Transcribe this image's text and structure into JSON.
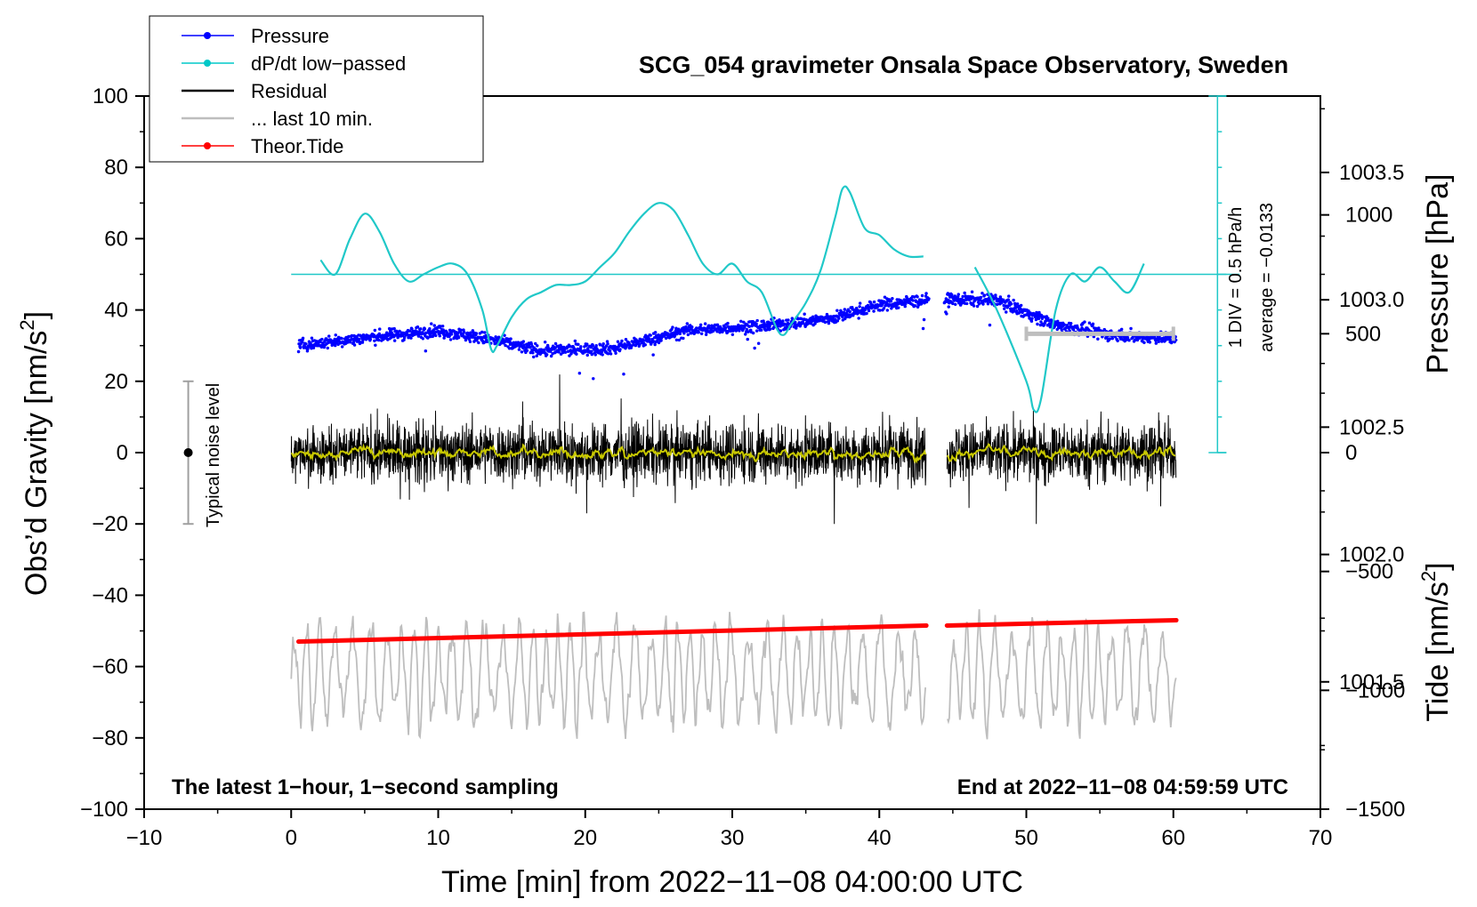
{
  "chart_data": {
    "type": "line",
    "title": "SCG_054 gravimeter Onsala Space Observatory, Sweden",
    "xlabel": "Time [min] from 2022−11−08 04:00:00 UTC",
    "ylabel": "Obs’d Gravity [nm/s",
    "ylabel_sup": "2",
    "ylabel_close": "]",
    "right_label_top": "Pressure [hPa]",
    "right_label_bottom": "Tide [nm/s",
    "right_label_bottom_sup": "2",
    "right_label_bottom_close": "]",
    "note_left": "The latest 1−hour, 1−second sampling",
    "note_right": "End at 2022−11−08 04:59:59 UTC",
    "noise_label": "Typical noise level",
    "dpdt_scale_label": "1 DIV = 0.5 hPa/h",
    "dpdt_average_label": "average = −0.0133",
    "xlim": [
      -10,
      70
    ],
    "ylim": [
      -100,
      100
    ],
    "pressure_ylim": [
      1001.0,
      1003.8
    ],
    "tide_ylim": [
      -1500,
      1500
    ],
    "x_ticks": [
      "−10",
      "0",
      "10",
      "20",
      "30",
      "40",
      "50",
      "60",
      "70"
    ],
    "x_tick_values": [
      -10,
      0,
      10,
      20,
      30,
      40,
      50,
      60,
      70
    ],
    "y_ticks": [
      "100",
      "80",
      "60",
      "40",
      "20",
      "0",
      "−20",
      "−40",
      "−60",
      "−80",
      "−100"
    ],
    "y_tick_values": [
      100,
      80,
      60,
      40,
      20,
      0,
      -20,
      -40,
      -60,
      -80,
      -100
    ],
    "pressure_ticks": [
      "1003.5",
      "1003.0",
      "1002.5",
      "1002.0",
      "1001.5"
    ],
    "pressure_tick_values": [
      1003.5,
      1003.0,
      1002.5,
      1002.0,
      1001.5
    ],
    "tide_ticks": [
      "1000",
      "500",
      "0",
      "−500",
      "−1000",
      "−1500"
    ],
    "tide_tick_values": [
      1000,
      500,
      0,
      -500,
      -1000,
      -1500
    ],
    "legend": [
      {
        "label": "Pressure",
        "color": "#0000ff",
        "marker": true
      },
      {
        "label": "dP/dt low−passed",
        "color": "#00c8c8",
        "marker": true
      },
      {
        "label": "Residual",
        "color": "#000000",
        "marker": false
      },
      {
        "label": "... last 10 min.",
        "color": "#bebebe",
        "marker": false
      },
      {
        "label": "Theor.Tide",
        "color": "#ff0000",
        "marker": true
      }
    ],
    "colors": {
      "pressure": "#0000ff",
      "dpdt": "#20c8c8",
      "residual": "#000000",
      "residual_smooth": "#c8c800",
      "last10": "#bebebe",
      "tide": "#ff0000",
      "noise_bar": "#a0a0a0"
    },
    "pressure": {
      "gap": [
        43.4,
        44.4
      ],
      "x": [
        0.5,
        5,
        10,
        13,
        17,
        22,
        27,
        33,
        37,
        40,
        43.3,
        44.5,
        48,
        52,
        56,
        60
      ],
      "y": [
        1002.82,
        1002.85,
        1002.88,
        1002.85,
        1002.8,
        1002.81,
        1002.88,
        1002.9,
        1002.93,
        1002.98,
        1003.0,
        1003.0,
        1003.0,
        1002.9,
        1002.86,
        1002.85
      ]
    },
    "dpdt": {
      "baseline": 50,
      "gap": [
        43.4,
        46.4
      ],
      "x": [
        2,
        3,
        4,
        5,
        6,
        7,
        8,
        9,
        10,
        11,
        12,
        13,
        13.6,
        14,
        15,
        16,
        17,
        18,
        19,
        20,
        21,
        22,
        23,
        24,
        25,
        26,
        27,
        28,
        29,
        30,
        31,
        32,
        33,
        33.5,
        34,
        35,
        36,
        37,
        37.5,
        38,
        39,
        40,
        41,
        42,
        43,
        46.5,
        48,
        50,
        50.5,
        51,
        52,
        53,
        54,
        55,
        56,
        57,
        58
      ],
      "y": [
        54,
        50,
        60,
        67,
        62,
        53,
        48,
        50,
        52,
        53,
        50,
        40,
        29,
        30,
        38,
        43,
        45,
        47,
        47,
        48,
        52,
        56,
        62,
        67,
        70,
        68,
        61,
        53,
        50,
        53,
        48,
        45,
        35,
        33,
        36,
        42,
        51,
        66,
        74,
        73,
        63,
        61,
        57,
        55,
        55,
        52,
        40,
        20,
        12,
        15,
        40,
        50,
        48,
        52,
        48,
        45,
        53
      ]
    },
    "residual": {
      "range": [
        -20,
        22
      ],
      "x_start": 0,
      "x_end": 60.2,
      "gap": [
        43.2,
        44.6
      ]
    },
    "last10_window": [
      50,
      60
    ],
    "tide": {
      "x": [
        0.5,
        43.2,
        44.6,
        60.2
      ],
      "y": [
        -53,
        -48.5,
        -48.5,
        -47
      ]
    },
    "noise_bar": {
      "x": -7,
      "y": [
        -20,
        20
      ]
    }
  }
}
